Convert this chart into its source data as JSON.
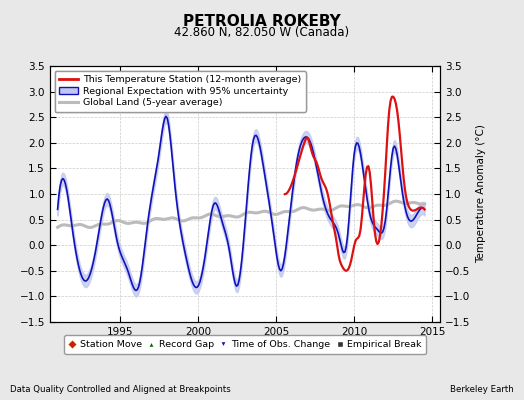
{
  "title": "PETROLIA ROKEBY",
  "subtitle": "42.860 N, 82.050 W (Canada)",
  "ylabel": "Temperature Anomaly (°C)",
  "xlabel_left": "Data Quality Controlled and Aligned at Breakpoints",
  "xlabel_right": "Berkeley Earth",
  "ylim": [
    -1.5,
    3.5
  ],
  "xlim": [
    1990.5,
    2015.5
  ],
  "yticks": [
    -1.5,
    -1.0,
    -0.5,
    0.0,
    0.5,
    1.0,
    1.5,
    2.0,
    2.5,
    3.0,
    3.5
  ],
  "xticks": [
    1995,
    2000,
    2005,
    2010,
    2015
  ],
  "bg_color": "#e8e8e8",
  "plot_bg_color": "#ffffff"
}
